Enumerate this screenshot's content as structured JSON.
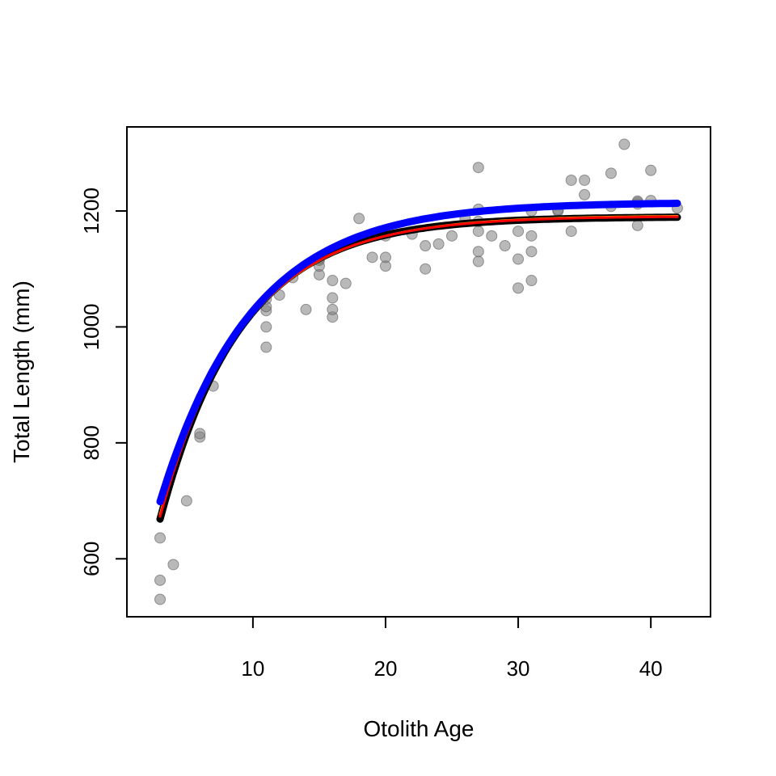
{
  "chart_data": {
    "type": "scatter",
    "title": "",
    "xlabel": "Otolith Age",
    "ylabel": "Total Length (mm)",
    "xlim": [
      0.5,
      44.5
    ],
    "ylim": [
      500,
      1345
    ],
    "x_ticks": [
      10,
      20,
      30,
      40
    ],
    "y_ticks": [
      600,
      800,
      1000,
      1200
    ],
    "grid": false,
    "legend": "none",
    "point_color": "#808080",
    "points": [
      [
        3,
        530
      ],
      [
        3,
        563
      ],
      [
        3,
        636
      ],
      [
        4,
        590
      ],
      [
        5,
        700
      ],
      [
        6,
        810
      ],
      [
        6,
        816
      ],
      [
        7,
        898
      ],
      [
        11,
        965
      ],
      [
        11,
        1000
      ],
      [
        11,
        1028
      ],
      [
        11,
        1035
      ],
      [
        11,
        1048
      ],
      [
        12,
        1055
      ],
      [
        13,
        1085
      ],
      [
        14,
        1030
      ],
      [
        15,
        1090
      ],
      [
        15,
        1105
      ],
      [
        15,
        1115
      ],
      [
        15,
        1118
      ],
      [
        16,
        1017
      ],
      [
        16,
        1030
      ],
      [
        16,
        1050
      ],
      [
        16,
        1080
      ],
      [
        17,
        1075
      ],
      [
        18,
        1187
      ],
      [
        19,
        1120
      ],
      [
        20,
        1105
      ],
      [
        20,
        1120
      ],
      [
        20,
        1157
      ],
      [
        22,
        1160
      ],
      [
        23,
        1100
      ],
      [
        23,
        1140
      ],
      [
        24,
        1143
      ],
      [
        25,
        1157
      ],
      [
        26,
        1187
      ],
      [
        27,
        1113
      ],
      [
        27,
        1130
      ],
      [
        27,
        1165
      ],
      [
        27,
        1182
      ],
      [
        27,
        1203
      ],
      [
        27,
        1275
      ],
      [
        28,
        1157
      ],
      [
        29,
        1140
      ],
      [
        30,
        1067
      ],
      [
        30,
        1117
      ],
      [
        30,
        1165
      ],
      [
        31,
        1080
      ],
      [
        31,
        1130
      ],
      [
        31,
        1157
      ],
      [
        31,
        1200
      ],
      [
        33,
        1200
      ],
      [
        33,
        1202
      ],
      [
        34,
        1165
      ],
      [
        34,
        1253
      ],
      [
        35,
        1228
      ],
      [
        35,
        1253
      ],
      [
        37,
        1208
      ],
      [
        37,
        1265
      ],
      [
        38,
        1315
      ],
      [
        39,
        1175
      ],
      [
        39,
        1212
      ],
      [
        39,
        1215
      ],
      [
        39,
        1217
      ],
      [
        40,
        1218
      ],
      [
        40,
        1270
      ],
      [
        42,
        1205
      ]
    ],
    "series": [
      {
        "color": "#000000",
        "type": "band",
        "x_range": [
          3,
          42
        ],
        "linf": 1190,
        "k": 0.165,
        "t0": -2.0
      },
      {
        "color": "#FFA500",
        "type": "line",
        "x_range": [
          3,
          42
        ],
        "linf": 1192,
        "k": 0.158,
        "t0": -2.3
      },
      {
        "color": "#FF0000",
        "type": "line",
        "x_range": [
          3,
          42
        ],
        "linf": 1191,
        "k": 0.16,
        "t0": -2.2
      },
      {
        "color": "#0000FF",
        "type": "band",
        "x_range": [
          3,
          42
        ],
        "linf": 1215,
        "k": 0.145,
        "t0": -2.9
      }
    ]
  }
}
